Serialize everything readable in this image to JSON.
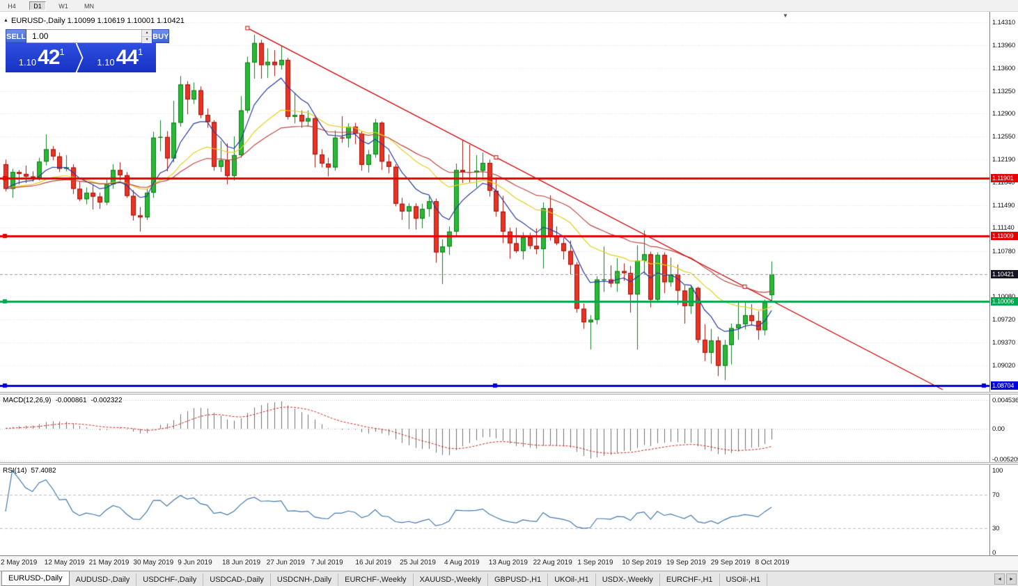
{
  "toolbar": {
    "timeframes": [
      {
        "label": "H4",
        "active": false
      },
      {
        "label": "D1",
        "active": true
      },
      {
        "label": "W1",
        "active": false
      },
      {
        "label": "MN",
        "active": false
      }
    ]
  },
  "header": {
    "chart_info": "EURUSD-,Daily 1.10099 1.10619 1.10001 1.10421"
  },
  "icons": {
    "one_click_toggle": "▲",
    "chart_shift_marker": "▼",
    "spinner_up": "▲",
    "spinner_down": "▼",
    "tab_scroll_left": "◄",
    "tab_scroll_right": "►"
  },
  "one_click": {
    "sell_label": "SELL",
    "buy_label": "BUY",
    "volume": "1.00",
    "sell_price": {
      "prefix": "1.10",
      "big": "42",
      "sup": "1"
    },
    "buy_price": {
      "prefix": "1.10",
      "big": "44",
      "sup": "1"
    }
  },
  "chart_data": {
    "type": "candlestick",
    "symbol": "EURUSD-",
    "timeframe": "Daily",
    "ohlc_display": {
      "open": "1.10099",
      "high": "1.10619",
      "low": "1.10001",
      "close": "1.10421"
    },
    "y_axis_labels": [
      "1.14310",
      "1.13960",
      "1.13600",
      "1.13250",
      "1.12900",
      "1.12550",
      "1.12190",
      "1.11840",
      "1.11490",
      "1.11140",
      "1.10780",
      "1.10080",
      "1.09720",
      "1.09370",
      "1.09020"
    ],
    "x_axis_labels": [
      "2 May 2019",
      "12 May 2019",
      "21 May 2019",
      "30 May 2019",
      "9 Jun 2019",
      "18 Jun 2019",
      "27 Jun 2019",
      "7 Jul 2019",
      "16 Jul 2019",
      "25 Jul 2019",
      "4 Aug 2019",
      "13 Aug 2019",
      "22 Aug 2019",
      "1 Sep 2019",
      "10 Sep 2019",
      "19 Sep 2019",
      "29 Sep 2019",
      "8 Oct 2019"
    ],
    "candles": [
      [
        1.1212,
        1.1219,
        1.117,
        1.1174
      ],
      [
        1.1174,
        1.1205,
        1.116,
        1.12
      ],
      [
        1.12,
        1.1203,
        1.1181,
        1.1197
      ],
      [
        1.1197,
        1.121,
        1.1183,
        1.1193
      ],
      [
        1.1193,
        1.1201,
        1.1185,
        1.1191
      ],
      [
        1.1191,
        1.1222,
        1.1187,
        1.1216
      ],
      [
        1.1216,
        1.1258,
        1.121,
        1.1235
      ],
      [
        1.1235,
        1.124,
        1.1218,
        1.1224
      ],
      [
        1.1224,
        1.123,
        1.12,
        1.1205
      ],
      [
        1.1205,
        1.1226,
        1.1201,
        1.1207
      ],
      [
        1.1207,
        1.1212,
        1.1166,
        1.1174
      ],
      [
        1.1174,
        1.1186,
        1.1155,
        1.1158
      ],
      [
        1.1158,
        1.1176,
        1.115,
        1.1168
      ],
      [
        1.1168,
        1.118,
        1.1142,
        1.1162
      ],
      [
        1.1162,
        1.1168,
        1.1143,
        1.1153
      ],
      [
        1.1153,
        1.1188,
        1.1149,
        1.1181
      ],
      [
        1.1181,
        1.1212,
        1.1174,
        1.1203
      ],
      [
        1.1203,
        1.1215,
        1.1187,
        1.1195
      ],
      [
        1.1195,
        1.12,
        1.116,
        1.1163
      ],
      [
        1.1163,
        1.1172,
        1.1125,
        1.1133
      ],
      [
        1.1133,
        1.1146,
        1.1108,
        1.113
      ],
      [
        1.113,
        1.1174,
        1.1126,
        1.1168
      ],
      [
        1.1168,
        1.1262,
        1.116,
        1.1253
      ],
      [
        1.1253,
        1.128,
        1.1232,
        1.1254
      ],
      [
        1.1254,
        1.1263,
        1.1201,
        1.1221
      ],
      [
        1.1221,
        1.131,
        1.1215,
        1.1276
      ],
      [
        1.1276,
        1.1348,
        1.127,
        1.1335
      ],
      [
        1.1335,
        1.134,
        1.1289,
        1.1312
      ],
      [
        1.1312,
        1.1338,
        1.1305,
        1.1326
      ],
      [
        1.1326,
        1.1332,
        1.1283,
        1.1288
      ],
      [
        1.1288,
        1.1298,
        1.1268,
        1.1277
      ],
      [
        1.1277,
        1.128,
        1.1202,
        1.1208
      ],
      [
        1.1208,
        1.1248,
        1.12,
        1.1218
      ],
      [
        1.1218,
        1.1244,
        1.1181,
        1.1194
      ],
      [
        1.1194,
        1.1255,
        1.1187,
        1.1226
      ],
      [
        1.1226,
        1.1317,
        1.1222,
        1.1295
      ],
      [
        1.1295,
        1.1378,
        1.1291,
        1.1369
      ],
      [
        1.1369,
        1.1412,
        1.1344,
        1.1399
      ],
      [
        1.1399,
        1.1404,
        1.1344,
        1.1365
      ],
      [
        1.1365,
        1.1391,
        1.1345,
        1.137
      ],
      [
        1.137,
        1.1388,
        1.1348,
        1.1365
      ],
      [
        1.1365,
        1.1394,
        1.1358,
        1.1373
      ],
      [
        1.1373,
        1.1376,
        1.1281,
        1.1285
      ],
      [
        1.1285,
        1.1322,
        1.1275,
        1.1288
      ],
      [
        1.1288,
        1.1295,
        1.1268,
        1.1278
      ],
      [
        1.1278,
        1.1295,
        1.127,
        1.1283
      ],
      [
        1.1283,
        1.1288,
        1.1207,
        1.1227
      ],
      [
        1.1227,
        1.1235,
        1.1207,
        1.1213
      ],
      [
        1.1213,
        1.1222,
        1.1193,
        1.1207
      ],
      [
        1.1207,
        1.1264,
        1.1202,
        1.1253
      ],
      [
        1.1253,
        1.1286,
        1.1245,
        1.1252
      ],
      [
        1.1252,
        1.1275,
        1.1238,
        1.127
      ],
      [
        1.127,
        1.1276,
        1.1243,
        1.1259
      ],
      [
        1.1259,
        1.1263,
        1.1202,
        1.1211
      ],
      [
        1.1211,
        1.1234,
        1.1199,
        1.1227
      ],
      [
        1.1227,
        1.1282,
        1.1222,
        1.1276
      ],
      [
        1.1276,
        1.1278,
        1.1203,
        1.1216
      ],
      [
        1.1216,
        1.1227,
        1.1198,
        1.1208
      ],
      [
        1.1208,
        1.1212,
        1.1147,
        1.1151
      ],
      [
        1.1151,
        1.116,
        1.1126,
        1.1139
      ],
      [
        1.1139,
        1.1152,
        1.1112,
        1.1147
      ],
      [
        1.1147,
        1.1152,
        1.1111,
        1.1128
      ],
      [
        1.1128,
        1.1151,
        1.1113,
        1.1143
      ],
      [
        1.1143,
        1.1162,
        1.1131,
        1.1155
      ],
      [
        1.1155,
        1.1159,
        1.106,
        1.1076
      ],
      [
        1.1076,
        1.1096,
        1.1027,
        1.1085
      ],
      [
        1.1085,
        1.1116,
        1.1072,
        1.1108
      ],
      [
        1.1108,
        1.1213,
        1.1101,
        1.1203
      ],
      [
        1.1203,
        1.1249,
        1.1183,
        1.12
      ],
      [
        1.12,
        1.1242,
        1.1184,
        1.1199
      ],
      [
        1.1199,
        1.1226,
        1.1176,
        1.1202
      ],
      [
        1.1202,
        1.123,
        1.1192,
        1.1214
      ],
      [
        1.1214,
        1.1219,
        1.1162,
        1.1171
      ],
      [
        1.1171,
        1.1192,
        1.1131,
        1.1139
      ],
      [
        1.1139,
        1.1163,
        1.109,
        1.1108
      ],
      [
        1.1108,
        1.1114,
        1.1066,
        1.109
      ],
      [
        1.109,
        1.1114,
        1.1075,
        1.1078
      ],
      [
        1.1078,
        1.1107,
        1.1065,
        1.1099
      ],
      [
        1.1099,
        1.1106,
        1.1081,
        1.1086
      ],
      [
        1.1086,
        1.1113,
        1.1073,
        1.1081
      ],
      [
        1.1081,
        1.1153,
        1.1051,
        1.1144
      ],
      [
        1.1144,
        1.1164,
        1.1094,
        1.1101
      ],
      [
        1.1101,
        1.1116,
        1.1087,
        1.109
      ],
      [
        1.109,
        1.1098,
        1.1065,
        1.1078
      ],
      [
        1.1078,
        1.1094,
        1.1042,
        1.1057
      ],
      [
        1.1057,
        1.1061,
        1.0983,
        1.0989
      ],
      [
        1.0989,
        1.0997,
        1.0958,
        1.0968
      ],
      [
        1.0968,
        1.0979,
        1.0926,
        1.0972
      ],
      [
        1.0972,
        1.1039,
        1.0965,
        1.1034
      ],
      [
        1.1034,
        1.1085,
        1.1015,
        1.1034
      ],
      [
        1.1034,
        1.1056,
        1.1022,
        1.1028
      ],
      [
        1.1028,
        1.1067,
        1.1015,
        1.1047
      ],
      [
        1.1047,
        1.1059,
        1.1032,
        1.1044
      ],
      [
        1.1044,
        1.1055,
        1.0983,
        1.1011
      ],
      [
        1.1011,
        1.1087,
        1.0926,
        1.1063
      ],
      [
        1.1063,
        1.111,
        1.1043,
        1.1073
      ],
      [
        1.1073,
        1.1077,
        1.0991,
        1.1003
      ],
      [
        1.1003,
        1.1076,
        1.0998,
        1.1072
      ],
      [
        1.1072,
        1.1076,
        1.1013,
        1.103
      ],
      [
        1.103,
        1.1068,
        1.1023,
        1.1042
      ],
      [
        1.1042,
        1.1057,
        1.0995,
        1.1017
      ],
      [
        1.1017,
        1.1025,
        1.0966,
        1.0993
      ],
      [
        1.0993,
        1.1024,
        1.0981,
        1.1021
      ],
      [
        1.1021,
        1.1023,
        1.0936,
        1.0941
      ],
      [
        1.0941,
        1.0965,
        1.0908,
        1.0921
      ],
      [
        1.0921,
        1.0958,
        1.0904,
        1.094
      ],
      [
        1.094,
        1.0946,
        1.0885,
        1.0901
      ],
      [
        1.0901,
        1.0941,
        1.0879,
        1.0933
      ],
      [
        1.0933,
        1.0966,
        1.0903,
        1.0959
      ],
      [
        1.0959,
        1.0999,
        1.0941,
        1.0965
      ],
      [
        1.0965,
        1.0999,
        1.0957,
        1.0979
      ],
      [
        1.0979,
        1.0996,
        1.0963,
        1.097
      ],
      [
        1.097,
        1.0985,
        1.0941,
        1.0956
      ],
      [
        1.0956,
        1.1003,
        1.0948,
        1.0999
      ],
      [
        1.10099,
        1.10619,
        1.10001,
        1.10421
      ]
    ],
    "moving_averages": [
      {
        "period": 21,
        "color": "#e3cf1c",
        "method": "ema"
      },
      {
        "period": 34,
        "color": "#c0453f",
        "method": "ema"
      },
      {
        "period": 8,
        "color": "#273a9e",
        "method": "ema"
      }
    ],
    "price_lines": [
      {
        "price": 1.11901,
        "label": "1.11901",
        "color": "#e60000",
        "thickness": 3,
        "handles": [
          "left"
        ]
      },
      {
        "price": 1.11009,
        "label": "1.11009",
        "color": "#e60000",
        "thickness": 3,
        "handles": [
          "left"
        ]
      },
      {
        "price": 1.10006,
        "label": "1.10006",
        "color": "#00a84f",
        "thickness": 3,
        "handles": [
          "left"
        ]
      },
      {
        "price": 1.08704,
        "label": "1.08704",
        "color": "#0000dd",
        "thickness": 3,
        "handles": [
          "left",
          "center",
          "right"
        ]
      }
    ],
    "current_price_line": {
      "price": 1.10421,
      "label": "1.10421",
      "badge_color": "#15161f"
    },
    "trendline": {
      "color": "#cc0000",
      "x1_index": 36,
      "p1": 1.1422,
      "x2_index": 110,
      "p2": 1.1023
    },
    "macd": {
      "label": "MACD(12,26,9)",
      "value_main": "-0.000861",
      "value_signal": "-0.002322",
      "fast": 12,
      "slow": 26,
      "signal": 9,
      "axis_labels": [
        "0.004536",
        "0.00",
        "-0.005205"
      ],
      "axis_values": [
        0.004536,
        0,
        -0.005205
      ]
    },
    "rsi": {
      "label": "RSI(14)",
      "value": "57.4082",
      "period": 14,
      "axis_labels": [
        "100",
        "70",
        "30",
        "0"
      ],
      "axis_values": [
        100,
        70,
        30,
        0
      ],
      "levels": [
        70,
        30
      ]
    }
  },
  "tabs": [
    {
      "label": "EURUSD-,Daily",
      "active": true
    },
    {
      "label": "AUDUSD-,Daily",
      "active": false
    },
    {
      "label": "USDCHF-,Daily",
      "active": false
    },
    {
      "label": "USDCAD-,Daily",
      "active": false
    },
    {
      "label": "USDCNH-,Daily",
      "active": false
    },
    {
      "label": "EURCHF-,Weekly",
      "active": false
    },
    {
      "label": "XAUUSD-,Weekly",
      "active": false
    },
    {
      "label": "GBPUSD-,H1",
      "active": false
    },
    {
      "label": "UKOil-,H1",
      "active": false
    },
    {
      "label": "USDX-,Weekly",
      "active": false
    },
    {
      "label": "EURCHF-,H1",
      "active": false
    },
    {
      "label": "USOil-,H1",
      "active": false
    }
  ]
}
